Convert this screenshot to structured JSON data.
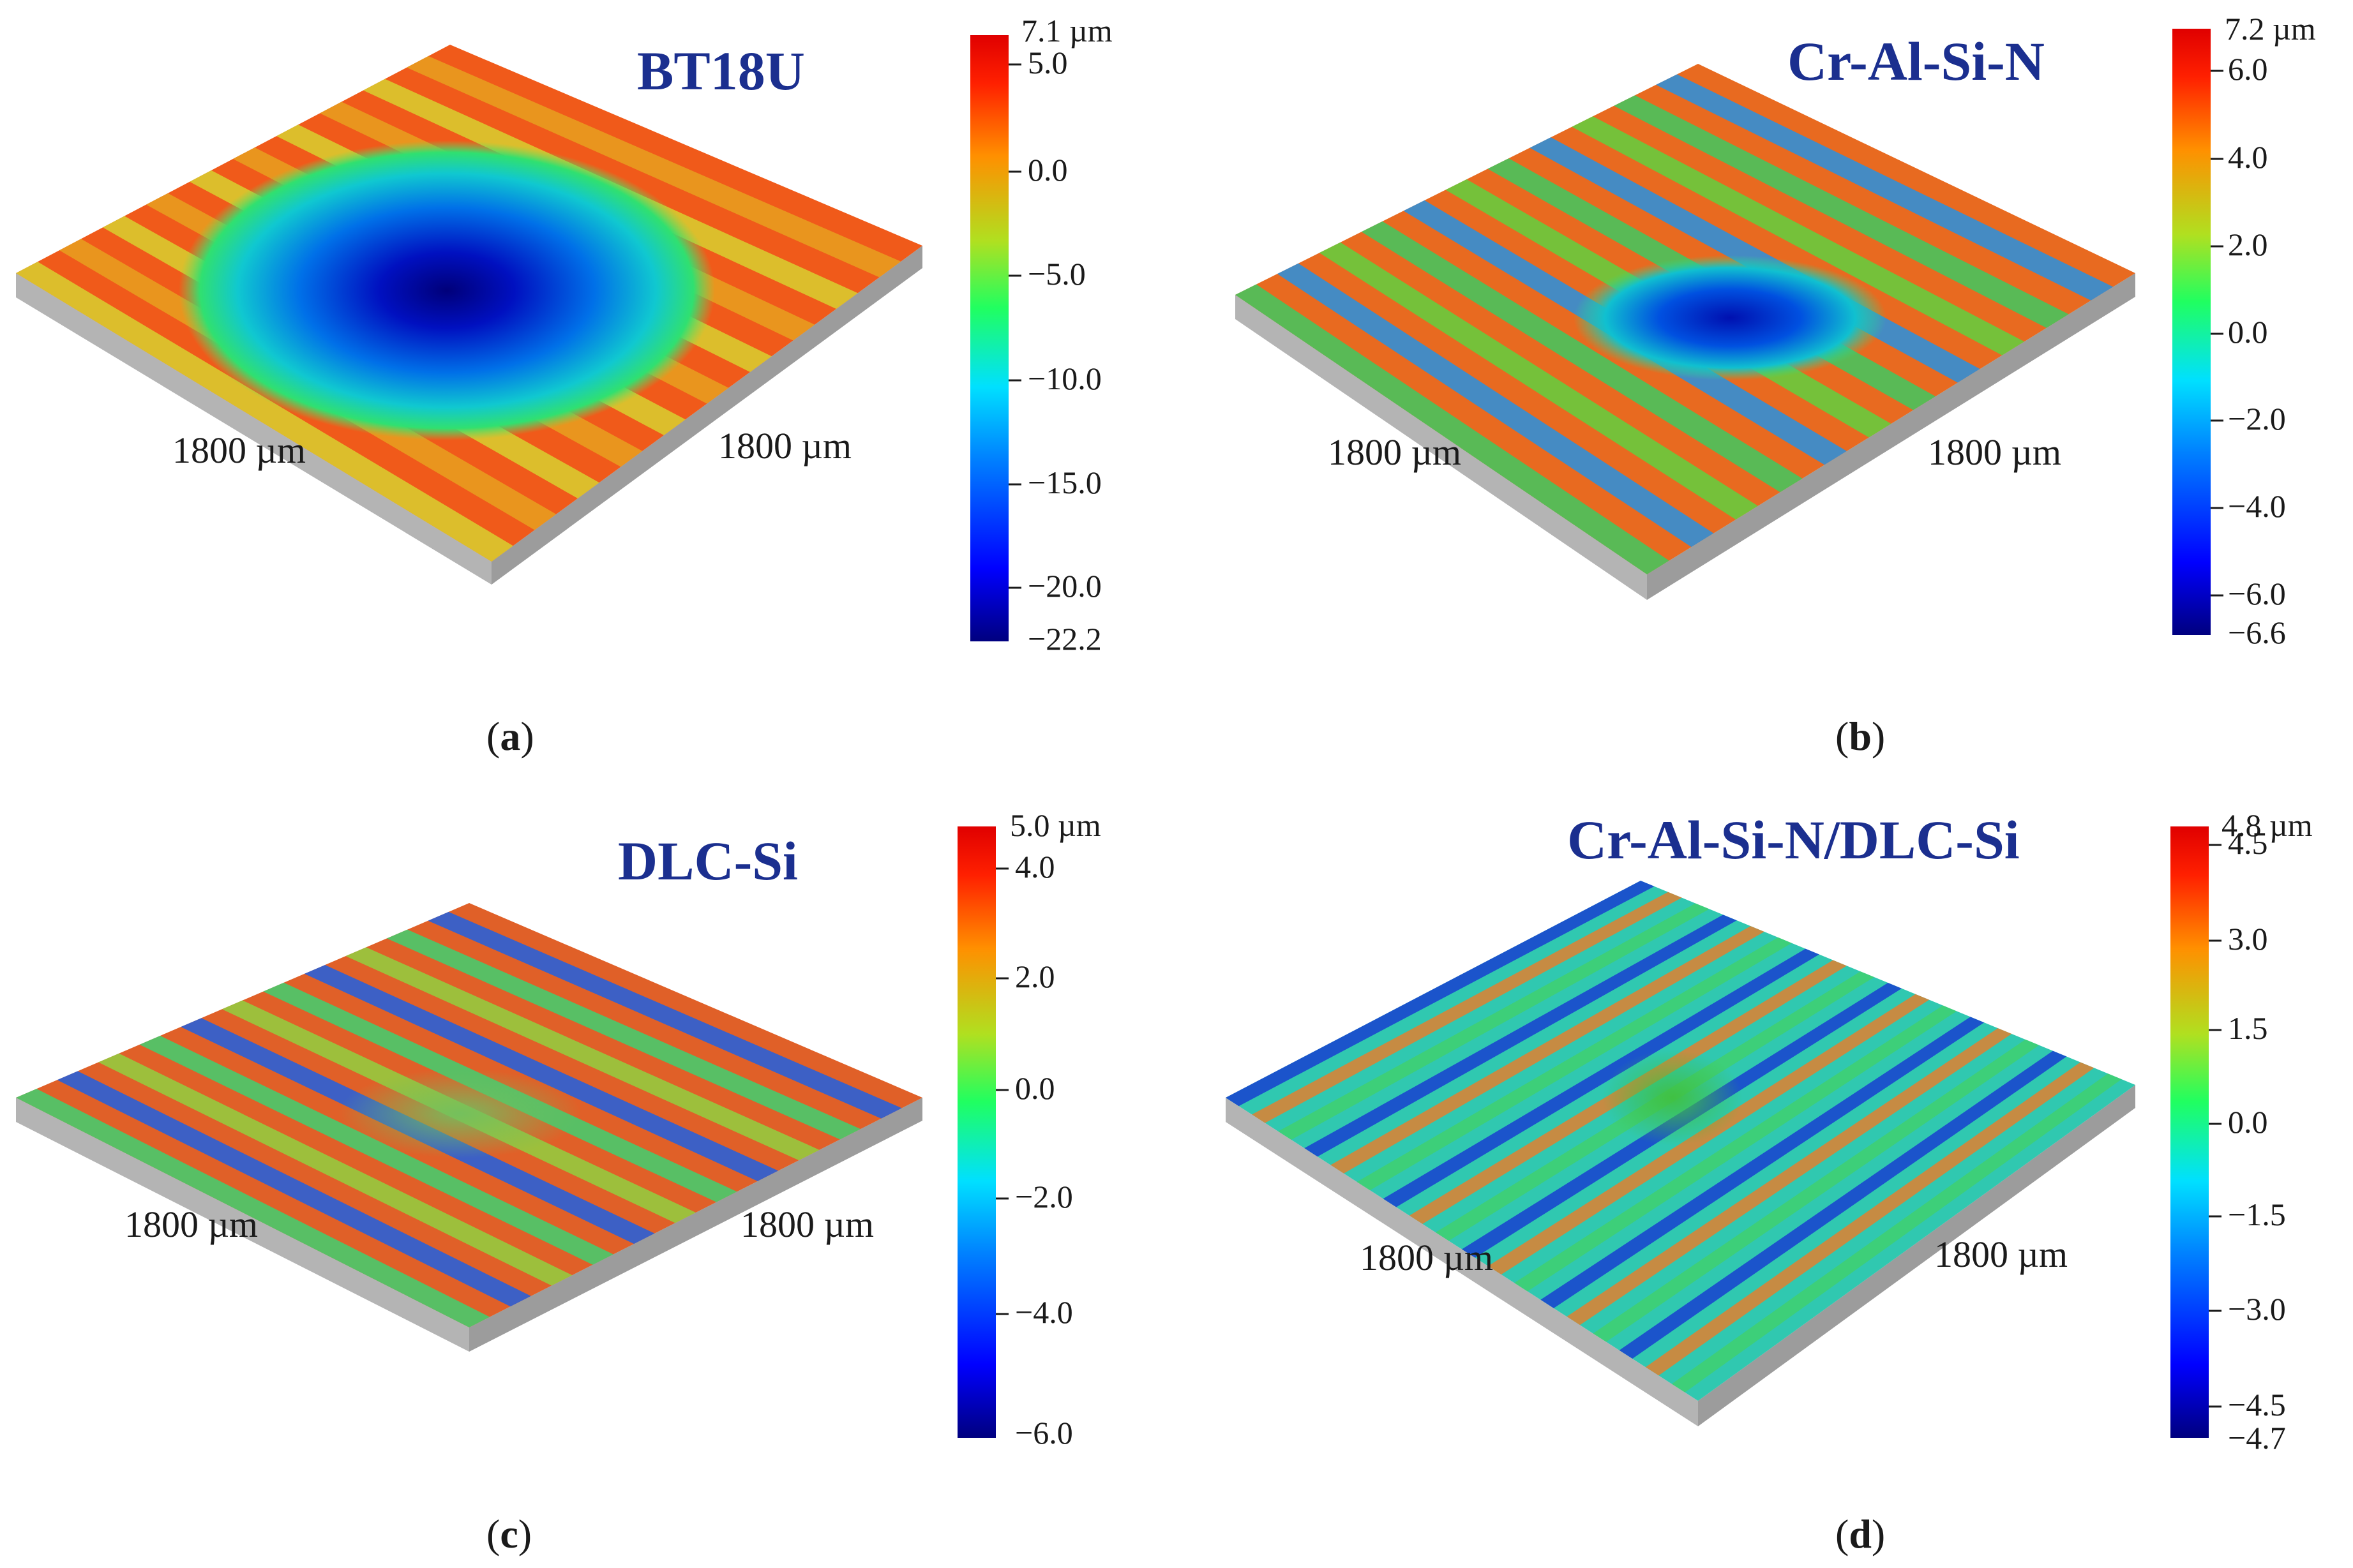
{
  "panels": [
    {
      "id": "a",
      "caption_letter": "a",
      "title": "BT18U",
      "x_axis_label": "1800 µm",
      "y_axis_label": "1800 µm",
      "colorbar": {
        "max_label": "7.1 µm",
        "ticks": [
          "5.0",
          "0.0",
          "−5.0",
          "−10.0",
          "−15.0",
          "−20.0"
        ],
        "min_label": "−22.2"
      },
      "surface": {
        "stripes": 10,
        "depression": "large circular wear crater",
        "stripe_color": "red"
      }
    },
    {
      "id": "b",
      "caption_letter": "b",
      "title": "Cr-Al-Si-N",
      "x_axis_label": "1800 µm",
      "y_axis_label": "1800 µm",
      "colorbar": {
        "max_label": "7.2 µm",
        "ticks": [
          "6.0",
          "4.0",
          "2.0",
          "0.0",
          "−2.0",
          "−4.0",
          "−6.0"
        ],
        "min_label": "−6.6"
      },
      "surface": {
        "stripes": 11,
        "depression": "small elliptical wear scar",
        "stripe_color": "red/green"
      }
    },
    {
      "id": "c",
      "caption_letter": "c",
      "title": "DLC-Si",
      "x_axis_label": "1800 µm",
      "y_axis_label": "1800 µm",
      "colorbar": {
        "max_label": "5.0 µm",
        "ticks": [
          "4.0",
          "2.0",
          "0.0",
          "−2.0",
          "−4.0"
        ],
        "min_label": "−6.0"
      },
      "surface": {
        "stripes": 11,
        "depression": "faint wear spot",
        "stripe_color": "red/green/blue"
      }
    },
    {
      "id": "d",
      "caption_letter": "d",
      "title": "Cr-Al-Si-N/DLC-Si",
      "x_axis_label": "1800 µm",
      "y_axis_label": "1800 µm",
      "colorbar": {
        "max_label": "4.8 µm",
        "ticks": [
          "4.5",
          "3.0",
          "1.5",
          "0.0",
          "−1.5",
          "−3.0",
          "−4.5"
        ],
        "min_label": "−4.7"
      },
      "surface": {
        "stripes": 18,
        "depression": "faint wear spot",
        "stripe_color": "blue/green/orange"
      }
    }
  ],
  "colors": {
    "title": "#1b2f8f",
    "jet": [
      "#00007f",
      "#0000ff",
      "#0080ff",
      "#00e0ff",
      "#20ff60",
      "#b0e020",
      "#ff9000",
      "#ff2000",
      "#e00000"
    ],
    "base_side": "#b8b8b8"
  }
}
